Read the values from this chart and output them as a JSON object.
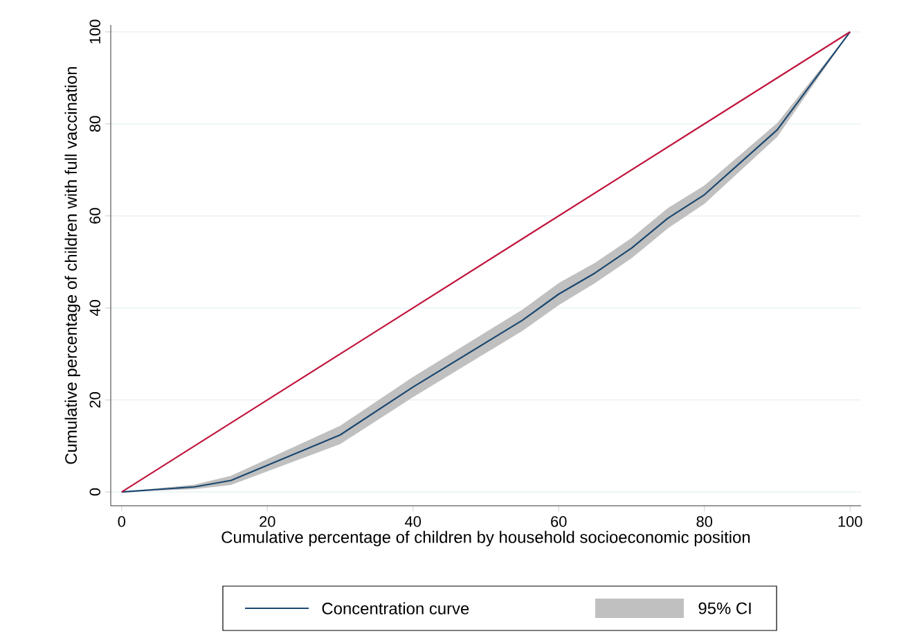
{
  "chart_data": {
    "type": "line",
    "xlabel": "Cumulative percentage of children by household socioeconomic position",
    "ylabel": "Cumulative percentage of children with full vaccination",
    "xlim": [
      -1.5,
      101.5
    ],
    "ylim": [
      -3,
      101.5
    ],
    "xticks": [
      0,
      20,
      40,
      60,
      80,
      100
    ],
    "yticks": [
      0,
      20,
      40,
      60,
      80,
      100
    ],
    "grid": "y",
    "legend": "bottom",
    "annotations": [
      "95% CI"
    ],
    "series": [
      {
        "name": "Concentration curve",
        "color": "#1a476f",
        "x": [
          0,
          10,
          15,
          30,
          40,
          55,
          60,
          65,
          70,
          75,
          80,
          90,
          100
        ],
        "values": [
          0,
          1.1,
          2.5,
          12.4,
          22.8,
          37.3,
          43,
          47.6,
          53,
          59.5,
          64.6,
          78.7,
          100
        ],
        "lower": [
          0,
          0.6,
          1.5,
          10.4,
          20.6,
          35,
          40.6,
          45.4,
          50.8,
          57.3,
          62.6,
          77.2,
          100
        ],
        "upper": [
          0,
          1.6,
          3.5,
          14.4,
          25,
          39.6,
          45.4,
          49.8,
          55.2,
          61.7,
          66.6,
          80.2,
          100
        ]
      },
      {
        "color": "#c0143c",
        "x": [
          0,
          100
        ],
        "values": [
          0,
          100
        ]
      }
    ]
  }
}
